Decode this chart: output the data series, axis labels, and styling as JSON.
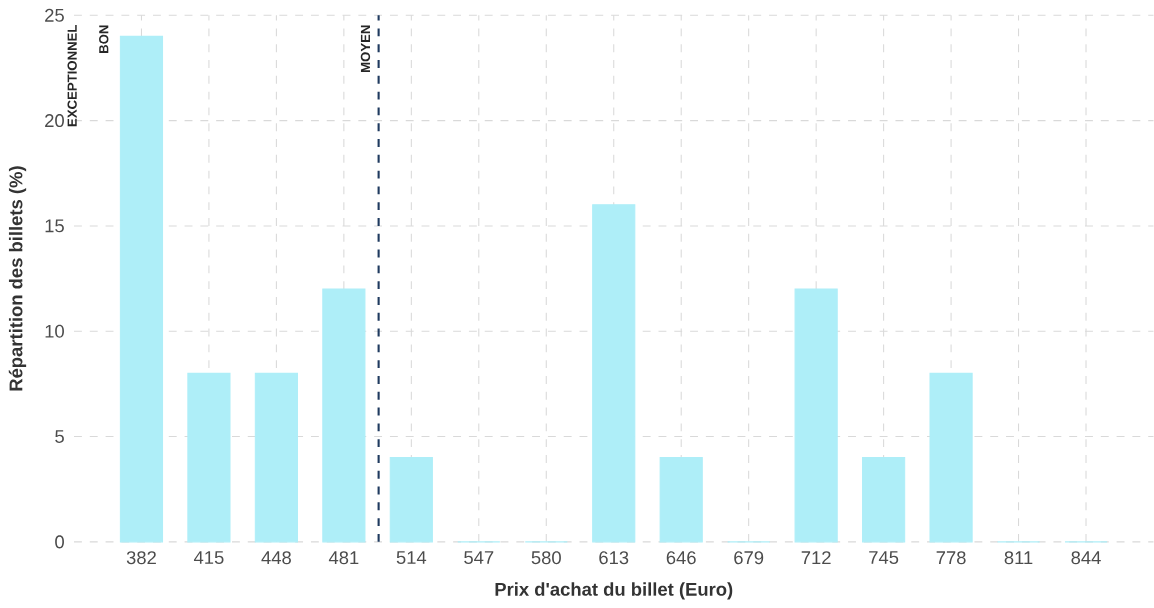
{
  "chart_data": {
    "type": "bar",
    "xlabel": "Prix d'achat du billet (Euro)",
    "ylabel": "Répartition des billets (%)",
    "x": [
      382,
      415,
      448,
      481,
      514,
      547,
      580,
      613,
      646,
      679,
      712,
      745,
      778,
      811,
      844
    ],
    "values": [
      24,
      8,
      8,
      12,
      4,
      0,
      0,
      16,
      4,
      0,
      12,
      4,
      8,
      0,
      0
    ],
    "color": "#aeeef8",
    "xlim": [
      349,
      877
    ],
    "xticks": [
      382,
      415,
      448,
      481,
      514,
      547,
      580,
      613,
      646,
      679,
      712,
      745,
      778,
      811,
      844
    ],
    "ylim": [
      0,
      25
    ],
    "yticks": [
      0,
      5,
      10,
      15,
      20,
      25
    ],
    "grid": true,
    "ref_lines": [
      {
        "axis": "x",
        "value": 498,
        "label": "MOYEN",
        "color": "#1f3a5f",
        "line_style": "dashed"
      }
    ],
    "annotations": [
      "EXCEPTIONNEL",
      "BON"
    ]
  }
}
